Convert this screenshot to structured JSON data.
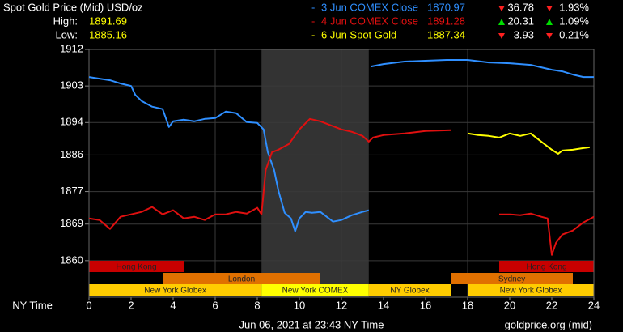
{
  "chart_data": {
    "type": "line",
    "title": "Spot Gold Price (Mid) USD/oz",
    "high_label": "High:",
    "high": 1891.69,
    "low_label": "Low:",
    "low": 1885.16,
    "x_label": "NY Time",
    "footer": "Jun 06, 2021 at 23:43 NY Time",
    "source": "goldprice.org (mid)",
    "xlim": [
      0,
      24
    ],
    "xticks": [
      0,
      2,
      4,
      6,
      8,
      10,
      12,
      14,
      16,
      18,
      20,
      22,
      24
    ],
    "ylim": [
      1851,
      1912
    ],
    "yticks": [
      1860,
      1869,
      1877,
      1886,
      1894,
      1903,
      1912
    ],
    "grid": true,
    "shaded_range": [
      8.2,
      13.3
    ],
    "series": [
      {
        "name": "3 Jun COMEX Close",
        "color": "#2f8fff",
        "last": 1870.97,
        "change": 36.78,
        "change_pct": "1.93%",
        "direction": "down",
        "x": [
          0,
          0.5,
          1,
          1.5,
          2,
          2.2,
          2.5,
          3,
          3.5,
          3.8,
          4,
          4.5,
          5,
          5.5,
          6,
          6.5,
          7,
          7.5,
          8,
          8.3,
          8.5,
          8.8,
          9,
          9.3,
          9.6,
          9.8,
          10,
          10.3,
          10.6,
          11,
          11.3,
          11.6,
          12,
          12.5,
          13,
          13.3,
          13.35,
          13.4,
          14,
          15,
          16,
          17,
          18,
          19,
          20,
          21,
          22,
          22.5,
          23,
          23.5,
          24
        ],
        "values": [
          1905.2,
          1904.8,
          1904.4,
          1903.6,
          1903,
          1900.8,
          1899.3,
          1897.9,
          1897.3,
          1892.9,
          1894.3,
          1894.7,
          1894.3,
          1894.9,
          1895.1,
          1896.7,
          1896.3,
          1894.1,
          1893.9,
          1892.3,
          1886.7,
          1882.3,
          1877.3,
          1871.8,
          1870.4,
          1867.2,
          1870.4,
          1872,
          1871.8,
          1872,
          1870.8,
          1869.6,
          1870,
          1871.2,
          1872,
          1872.4,
          null,
          1907.8,
          1908.4,
          1909,
          1909.2,
          1909.4,
          1909.4,
          1908.8,
          1908.6,
          1908.2,
          1907,
          1906.6,
          1905.8,
          1905.2,
          1905.2
        ]
      },
      {
        "name": "4 Jun COMEX Close",
        "color": "#e01010",
        "last": 1891.28,
        "change": 20.31,
        "change_pct": "1.09%",
        "direction": "up",
        "x": [
          0,
          0.5,
          1,
          1.5,
          2,
          2.5,
          3,
          3.5,
          4,
          4.5,
          5,
          5.5,
          6,
          6.5,
          7,
          7.5,
          8,
          8.2,
          8.4,
          8.7,
          9,
          9.5,
          10,
          10.5,
          11,
          11.5,
          12,
          12.5,
          13,
          13.3,
          13.5,
          14,
          15,
          16,
          17.2,
          18,
          19.5,
          20,
          20.5,
          21,
          21.5,
          21.8,
          22,
          22.2,
          22.5,
          23,
          23.5,
          24
        ],
        "values": [
          1870.4,
          1870,
          1867.8,
          1870.8,
          1871.4,
          1872,
          1873.2,
          1871.4,
          1872.4,
          1870.4,
          1870.8,
          1870,
          1871.4,
          1871.4,
          1872,
          1871.6,
          1873,
          1871.4,
          1882.3,
          1886.7,
          1887.3,
          1888.7,
          1892.3,
          1894.9,
          1894.3,
          1893.3,
          1892.3,
          1891.7,
          1890.7,
          1889.3,
          1890.3,
          1890.9,
          1891.3,
          1891.9,
          1892.1,
          null,
          1871.4,
          1871.4,
          1871.2,
          1871.6,
          1870.8,
          1870.4,
          1861.4,
          1864.4,
          1866.4,
          1867.4,
          1869.4,
          1870.8
        ]
      },
      {
        "name": "6 Jun Spot Gold",
        "color": "#ffff00",
        "last": 1887.34,
        "change": 3.93,
        "change_pct": "0.21%",
        "direction": "down",
        "x": [
          18,
          18.5,
          19,
          19.5,
          20,
          20.5,
          21,
          21.5,
          22,
          22.3,
          22.5,
          23,
          23.5,
          23.8
        ],
        "values": [
          1891.3,
          1890.9,
          1890.7,
          1890.3,
          1891.3,
          1890.7,
          1891.3,
          1889.3,
          1887.3,
          1886.3,
          1887.1,
          1887.3,
          1887.7,
          1887.9
        ]
      }
    ],
    "session_rows": [
      [
        {
          "label": "Hong Kong",
          "start": 0,
          "end": 4.5,
          "color": "#c80000"
        },
        {
          "label": "Hong Kong",
          "start": 19.5,
          "end": 24,
          "color": "#c80000"
        }
      ],
      [
        {
          "label": "London",
          "start": 3.5,
          "end": 11,
          "color": "#e07000"
        },
        {
          "label": "Sydney",
          "start": 17.2,
          "end": 23,
          "color": "#e07000"
        }
      ],
      [
        {
          "label": "New York Globex",
          "start": 0,
          "end": 8.2,
          "color": "#ffcc00"
        },
        {
          "label": "New York COMEX",
          "start": 8.2,
          "end": 13.3,
          "color": "#ffff00"
        },
        {
          "label": "NY Globex",
          "start": 13.3,
          "end": 17.2,
          "color": "#ffcc00"
        },
        {
          "label": "New York Globex",
          "start": 18,
          "end": 24,
          "color": "#ffcc00"
        }
      ]
    ]
  }
}
